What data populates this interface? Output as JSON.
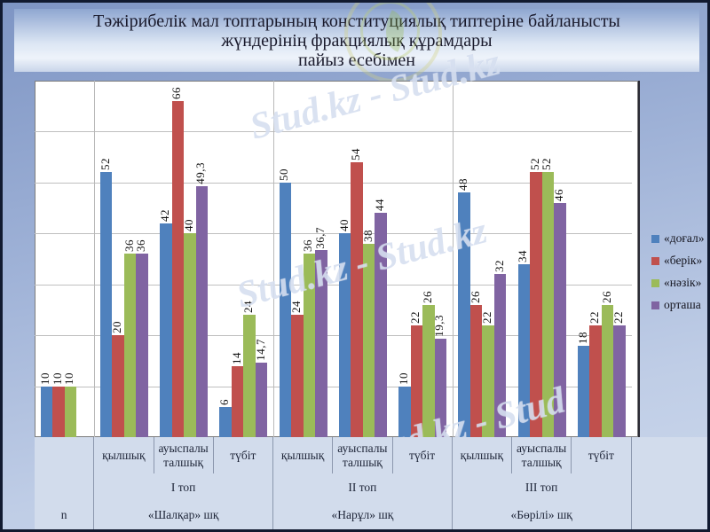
{
  "title": {
    "line1": "Тәжірибелік мал топтарының конституциялық типтеріне байланысты",
    "line2": "жүндерінің фракциялық құрамдары",
    "line3": "пайыз есебімен"
  },
  "watermarks": {
    "text1": "Stud.kz - Stud.kz",
    "text2": "Stud.kz - Stud.kz",
    "text3": "Stud.kz - Stud"
  },
  "chart_data": {
    "type": "bar",
    "title": "Тәжірибелік мал топтарының конституциялық типтеріне байланысты жүндерінің фракциялық құрамдары пайыз есебімен",
    "xlabel": "",
    "ylabel": "",
    "ylim": [
      0,
      70
    ],
    "grid_step": 10,
    "grid": "horizontal",
    "legend_position": "right",
    "categories": [
      "n",
      "қылшық",
      "ауыспалы талшық",
      "түбіт",
      "қылшық",
      "ауыспалы талшық",
      "түбіт",
      "қылшық",
      "ауыспалы талшық",
      "түбіт"
    ],
    "group_labels": [
      "I топ",
      "II топ",
      "III топ"
    ],
    "farm_labels": [
      "«Шалқар» шқ",
      "«Нарұл» шқ",
      "«Бөрілі» шқ"
    ],
    "first_column_label": "n",
    "series": [
      {
        "name": "«доғал»",
        "color": "#4f81bd",
        "values": [
          10,
          52,
          42,
          6,
          50,
          40,
          10,
          48,
          34,
          18
        ]
      },
      {
        "name": "«берік»",
        "color": "#c0504d",
        "values": [
          10,
          20,
          66,
          14,
          24,
          54,
          22,
          26,
          52,
          22
        ]
      },
      {
        "name": "«нәзік»",
        "color": "#9bbb59",
        "values": [
          10,
          36,
          40,
          24,
          36,
          38,
          26,
          22,
          52,
          26
        ]
      },
      {
        "name": "орташа",
        "color": "#8064a2",
        "values": [
          null,
          36,
          49.3,
          14.7,
          36.7,
          44,
          19.3,
          32,
          46,
          22
        ]
      }
    ]
  }
}
